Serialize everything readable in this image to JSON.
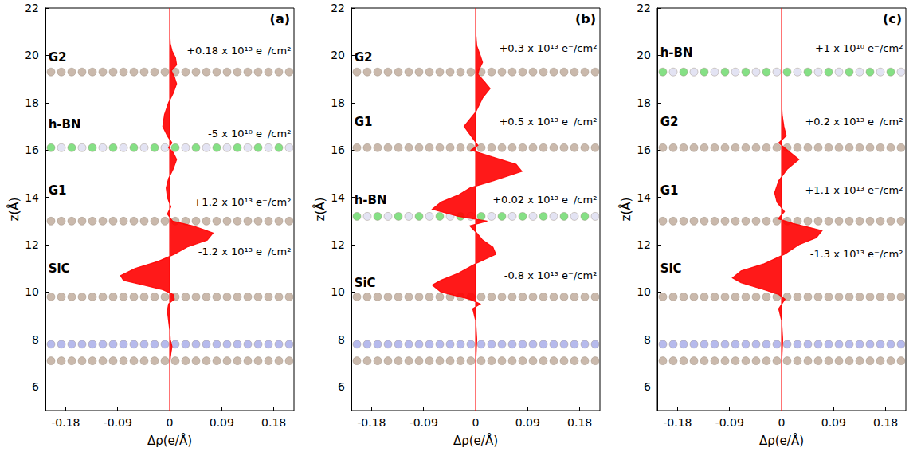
{
  "chart_data": [
    {
      "type": "area",
      "panel_label": "(a)",
      "xlabel": "Δρ(e/Å)",
      "ylabel": "z(Å)",
      "xlim": [
        -0.215,
        0.215
      ],
      "xticks": [
        -0.18,
        -0.09,
        0,
        0.09,
        0.18
      ],
      "ylim": [
        5,
        22
      ],
      "yticks": [
        6,
        8,
        10,
        12,
        14,
        16,
        18,
        20,
        22
      ],
      "grid": false,
      "color": "#ff0000",
      "y": [
        22,
        21,
        20.5,
        20.2,
        19.9,
        19.6,
        19.35,
        19.1,
        18.8,
        18.4,
        18.0,
        17.5,
        17.0,
        16.6,
        16.3,
        16.1,
        15.9,
        15.6,
        15.2,
        14.8,
        14.4,
        14.0,
        13.6,
        13.3,
        13.0,
        12.8,
        12.5,
        12.2,
        11.9,
        11.6,
        11.3,
        11.0,
        10.7,
        10.5,
        10.3,
        10.1,
        9.9,
        9.7,
        9.5,
        9.2,
        8.8,
        8.4,
        8.0,
        7.7,
        7.4,
        7.0,
        6.0,
        5.0
      ],
      "x": [
        0,
        0,
        0.001,
        0.004,
        0.01,
        0.012,
        0.003,
        0.008,
        0.012,
        0.006,
        -0.002,
        -0.009,
        -0.012,
        -0.004,
        0.004,
        -0.002,
        0.006,
        0.012,
        0.006,
        -0.002,
        -0.006,
        -0.004,
        0.002,
        -0.004,
        0.005,
        0.04,
        0.075,
        0.065,
        0.03,
        0.008,
        -0.02,
        -0.06,
        -0.085,
        -0.08,
        -0.045,
        -0.012,
        0.006,
        0.008,
        -0.002,
        -0.004,
        -0.002,
        0,
        0.001,
        0.004,
        0.002,
        0,
        0,
        0
      ],
      "layers": [
        {
          "y": 19.3,
          "colors": [
            "#b8a290"
          ]
        },
        {
          "y": 16.1,
          "colors": [
            "#5cd65c",
            "#d9d9ef"
          ]
        },
        {
          "y": 13.0,
          "colors": [
            "#b8a290"
          ]
        },
        {
          "y": 9.8,
          "colors": [
            "#b8a290"
          ]
        },
        {
          "y": 7.8,
          "colors": [
            "#9ea3e6"
          ]
        },
        {
          "y": 7.1,
          "colors": [
            "#b8a290"
          ]
        }
      ],
      "annotations": [
        {
          "text": "G2",
          "x": -0.21,
          "y": 19.9
        },
        {
          "text": "+0.18 x 10¹³ e⁻/cm²",
          "x": 0.21,
          "y": 20.2
        },
        {
          "text": "h-BN",
          "x": -0.21,
          "y": 17.1
        },
        {
          "text": "-5 x 10¹⁰ e⁻/cm²",
          "x": 0.21,
          "y": 16.7
        },
        {
          "text": "G1",
          "x": -0.21,
          "y": 14.3
        },
        {
          "text": "+1.2 x 10¹³ e⁻/cm²",
          "x": 0.21,
          "y": 13.8
        },
        {
          "text": "SiC",
          "x": -0.21,
          "y": 11.0
        },
        {
          "text": "-1.2 x 10¹³ e⁻/cm²",
          "x": 0.21,
          "y": 11.7
        }
      ]
    },
    {
      "type": "area",
      "panel_label": "(b)",
      "xlabel": "Δρ(e/Å)",
      "ylabel": "z(Å)",
      "xlim": [
        -0.215,
        0.215
      ],
      "xticks": [
        -0.18,
        -0.09,
        0,
        0.09,
        0.18
      ],
      "ylim": [
        5,
        22
      ],
      "yticks": [
        6,
        8,
        10,
        12,
        14,
        16,
        18,
        20,
        22
      ],
      "grid": false,
      "color": "#ff0000",
      "y": [
        22,
        21,
        20.4,
        20.0,
        19.7,
        19.4,
        19.2,
        18.9,
        18.6,
        18.2,
        17.6,
        17.0,
        16.5,
        16.2,
        16.0,
        15.7,
        15.4,
        15.1,
        14.7,
        14.4,
        14.1,
        13.8,
        13.5,
        13.2,
        13.0,
        12.8,
        12.5,
        12.2,
        11.9,
        11.6,
        11.2,
        10.8,
        10.5,
        10.3,
        10.0,
        9.7,
        9.5,
        9.3,
        8.8,
        8.0,
        7.0,
        6.0,
        5.0
      ],
      "x": [
        0,
        0,
        0.002,
        0.008,
        0.012,
        0.006,
        0.004,
        0.015,
        0.025,
        0.012,
        0,
        -0.02,
        -0.005,
        0.004,
        -0.008,
        0.03,
        0.07,
        0.08,
        0.03,
        -0.01,
        -0.03,
        -0.06,
        -0.075,
        -0.03,
        0.02,
        -0.01,
        0.002,
        0.012,
        0.03,
        0.035,
        0,
        -0.03,
        -0.06,
        -0.075,
        -0.06,
        -0.01,
        0.008,
        -0.005,
        0,
        0.002,
        0,
        0,
        0
      ],
      "layers": [
        {
          "y": 19.3,
          "colors": [
            "#b8a290"
          ]
        },
        {
          "y": 16.1,
          "colors": [
            "#b8a290"
          ]
        },
        {
          "y": 13.2,
          "colors": [
            "#5cd65c",
            "#d9d9ef"
          ]
        },
        {
          "y": 9.8,
          "colors": [
            "#b8a290"
          ]
        },
        {
          "y": 7.8,
          "colors": [
            "#9ea3e6"
          ]
        },
        {
          "y": 7.1,
          "colors": [
            "#b8a290"
          ]
        }
      ],
      "annotations": [
        {
          "text": "G2",
          "x": -0.21,
          "y": 19.9
        },
        {
          "text": "+0.3 x 10¹³ e⁻/cm²",
          "x": 0.21,
          "y": 20.3
        },
        {
          "text": "G1",
          "x": -0.21,
          "y": 17.2
        },
        {
          "text": "+0.5 x 10¹³ e⁻/cm²",
          "x": 0.21,
          "y": 17.2
        },
        {
          "text": "h-BN",
          "x": -0.21,
          "y": 13.9
        },
        {
          "text": "+0.02 x 10¹³ e⁻/cm²",
          "x": 0.21,
          "y": 13.9
        },
        {
          "text": "SiC",
          "x": -0.21,
          "y": 10.4
        },
        {
          "text": "-0.8 x 10¹³ e⁻/cm²",
          "x": 0.21,
          "y": 10.7
        }
      ]
    },
    {
      "type": "area",
      "panel_label": "(c)",
      "xlabel": "Δρ(e/Å)",
      "ylabel": "z(Å)",
      "xlim": [
        -0.215,
        0.215
      ],
      "xticks": [
        -0.18,
        -0.09,
        0,
        0.09,
        0.18
      ],
      "ylim": [
        5,
        22
      ],
      "yticks": [
        6,
        8,
        10,
        12,
        14,
        16,
        18,
        20,
        22
      ],
      "grid": false,
      "color": "#ff0000",
      "y": [
        22,
        20,
        18,
        17.5,
        17.0,
        16.6,
        16.3,
        16.0,
        15.6,
        15.2,
        14.7,
        14.2,
        13.8,
        13.4,
        13.1,
        12.9,
        12.6,
        12.3,
        12.0,
        11.6,
        11.2,
        10.9,
        10.6,
        10.4,
        10.1,
        9.9,
        9.7,
        9.3,
        8.8,
        8.0,
        7.0,
        6.0,
        5.0
      ],
      "x": [
        0,
        0,
        0,
        0.001,
        0.004,
        0.008,
        -0.005,
        0.01,
        0.03,
        0.01,
        -0.005,
        -0.012,
        -0.008,
        0.005,
        -0.006,
        0.02,
        0.07,
        0.06,
        0.03,
        0.005,
        -0.03,
        -0.07,
        -0.085,
        -0.07,
        -0.03,
        -0.005,
        0.006,
        -0.005,
        0,
        0.002,
        0,
        0,
        0
      ],
      "layers": [
        {
          "y": 19.3,
          "colors": [
            "#5cd65c",
            "#d9d9ef"
          ]
        },
        {
          "y": 16.1,
          "colors": [
            "#b8a290"
          ]
        },
        {
          "y": 13.0,
          "colors": [
            "#b8a290"
          ]
        },
        {
          "y": 9.8,
          "colors": [
            "#b8a290"
          ]
        },
        {
          "y": 7.8,
          "colors": [
            "#9ea3e6"
          ]
        },
        {
          "y": 7.1,
          "colors": [
            "#b8a290"
          ]
        }
      ],
      "annotations": [
        {
          "text": "h-BN",
          "x": -0.21,
          "y": 20.1
        },
        {
          "text": "+1 x 10¹⁰ e⁻/cm²",
          "x": 0.21,
          "y": 20.3
        },
        {
          "text": "G2",
          "x": -0.21,
          "y": 17.2
        },
        {
          "text": "+0.2 x 10¹³ e⁻/cm²",
          "x": 0.21,
          "y": 17.2
        },
        {
          "text": "G1",
          "x": -0.21,
          "y": 14.3
        },
        {
          "text": "+1.1 x 10¹³ e⁻/cm²",
          "x": 0.21,
          "y": 14.3
        },
        {
          "text": "SiC",
          "x": -0.21,
          "y": 11.0
        },
        {
          "text": "-1.3 x 10¹³ e⁻/cm²",
          "x": 0.21,
          "y": 11.6
        }
      ]
    }
  ]
}
